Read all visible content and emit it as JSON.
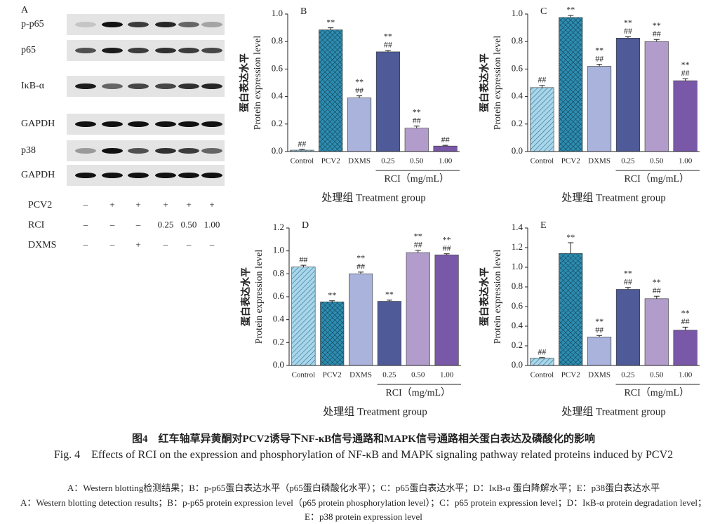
{
  "blot": {
    "panel": "A",
    "bands": [
      "p-p65",
      "p65",
      "IκB-α",
      "GAPDH",
      "p38",
      "GAPDH"
    ],
    "treatments": [
      {
        "name": "PCV2",
        "marks": [
          "–",
          "+",
          "+",
          "+",
          "+",
          "+"
        ]
      },
      {
        "name": "RCI",
        "marks": [
          "–",
          "–",
          "–",
          "0.25",
          "0.50",
          "1.00"
        ]
      },
      {
        "name": "DXMS",
        "marks": [
          "–",
          "–",
          "+",
          "–",
          "–",
          "–"
        ]
      }
    ]
  },
  "chart_data": [
    {
      "type": "bar",
      "panel": "B",
      "y_label_cn": "蛋白表达水平",
      "y_label_en": "Protein expression level",
      "x_label": "处理组 Treatment group",
      "group_label": "RCI（mg/mL）",
      "categories": [
        "Control",
        "PCV2",
        "DXMS",
        "0.25",
        "0.50",
        "1.00"
      ],
      "values": [
        0.01,
        0.885,
        0.39,
        0.725,
        0.17,
        0.04
      ],
      "errors": [
        0.005,
        0.015,
        0.015,
        0.01,
        0.015,
        0.005
      ],
      "annotations": [
        [
          "##"
        ],
        [
          "**"
        ],
        [
          "**",
          "##"
        ],
        [
          "**",
          "##"
        ],
        [
          "**",
          "##"
        ],
        [
          "##"
        ]
      ],
      "colors": [
        "#a9d6ea",
        "#2d8db1",
        "#a9b3dc",
        "#4e5b98",
        "#b19ccb",
        "#7a58a8"
      ],
      "patterns": [
        "diagonal",
        "crosshatch",
        "solid",
        "solid",
        "solid",
        "solid"
      ],
      "ylim": [
        0,
        1
      ],
      "yticks": [
        {
          "value": 0,
          "label": "0.0"
        },
        0.2,
        0.4,
        0.6,
        0.8,
        {
          "value": 1,
          "label": "1.0"
        }
      ]
    },
    {
      "type": "bar",
      "panel": "C",
      "y_label_cn": "蛋白表达水平",
      "y_label_en": "Protein expression level",
      "x_label": "处理组 Treatment group",
      "group_label": "RCI（mg/mL）",
      "categories": [
        "Control",
        "PCV2",
        "DXMS",
        "0.25",
        "0.50",
        "1.00"
      ],
      "values": [
        0.465,
        0.975,
        0.62,
        0.825,
        0.8,
        0.515
      ],
      "errors": [
        0.015,
        0.015,
        0.015,
        0.01,
        0.015,
        0.015
      ],
      "annotations": [
        [
          "##"
        ],
        [
          "**"
        ],
        [
          "**",
          "##"
        ],
        [
          "**",
          "##"
        ],
        [
          "**",
          "##"
        ],
        [
          "**",
          "##"
        ]
      ],
      "colors": [
        "#a9d6ea",
        "#2d8db1",
        "#a9b3dc",
        "#4e5b98",
        "#b19ccb",
        "#7a58a8"
      ],
      "patterns": [
        "diagonal",
        "crosshatch",
        "solid",
        "solid",
        "solid",
        "solid"
      ],
      "ylim": [
        0,
        1
      ],
      "yticks": [
        {
          "value": 0,
          "label": "0.0"
        },
        0.2,
        0.4,
        0.6,
        0.8,
        {
          "value": 1,
          "label": "1.0"
        }
      ]
    },
    {
      "type": "bar",
      "panel": "D",
      "y_label_cn": "蛋白表达水平",
      "y_label_en": "Protein expression level",
      "x_label": "处理组 Treatment group",
      "group_label": "RCI（mg/mL）",
      "categories": [
        "Control",
        "PCV2",
        "DXMS",
        "0.25",
        "0.50",
        "1.00"
      ],
      "values": [
        0.86,
        0.555,
        0.8,
        0.56,
        0.985,
        0.965
      ],
      "errors": [
        0.015,
        0.01,
        0.015,
        0.01,
        0.02,
        0.01
      ],
      "annotations": [
        [
          "##"
        ],
        [
          "**"
        ],
        [
          "**",
          "##"
        ],
        [
          "**"
        ],
        [
          "**",
          "##"
        ],
        [
          "**",
          "##"
        ]
      ],
      "colors": [
        "#a9d6ea",
        "#2d8db1",
        "#a9b3dc",
        "#4e5b98",
        "#b19ccb",
        "#7a58a8"
      ],
      "patterns": [
        "diagonal",
        "crosshatch",
        "solid",
        "solid",
        "solid",
        "solid"
      ],
      "ylim": [
        0,
        1.2
      ],
      "yticks": [
        {
          "value": 0,
          "label": "0.0"
        },
        0.2,
        0.4,
        0.6,
        0.8,
        {
          "value": 1,
          "label": "1.0"
        },
        1.2
      ]
    },
    {
      "type": "bar",
      "panel": "E",
      "y_label_cn": "蛋白表达水平",
      "y_label_en": "Protein expression level",
      "x_label": "处理组 Treatment group",
      "group_label": "RCI（mg/mL）",
      "categories": [
        "Control",
        "PCV2",
        "DXMS",
        "0.25",
        "0.50",
        "1.00"
      ],
      "values": [
        0.075,
        1.14,
        0.29,
        0.775,
        0.68,
        0.36
      ],
      "errors": [
        0.005,
        0.11,
        0.015,
        0.02,
        0.025,
        0.03
      ],
      "annotations": [
        [
          "##"
        ],
        [
          "**"
        ],
        [
          "**",
          "##"
        ],
        [
          "**",
          "##"
        ],
        [
          "**",
          "##"
        ],
        [
          "**",
          "##"
        ]
      ],
      "colors": [
        "#a9d6ea",
        "#2d8db1",
        "#a9b3dc",
        "#4e5b98",
        "#b19ccb",
        "#7a58a8"
      ],
      "patterns": [
        "diagonal",
        "crosshatch",
        "solid",
        "solid",
        "solid",
        "solid"
      ],
      "ylim": [
        0,
        1.4
      ],
      "yticks": [
        {
          "value": 0,
          "label": "0.0"
        },
        0.2,
        0.4,
        0.6,
        0.8,
        {
          "value": 1,
          "label": "1.0"
        },
        1.2,
        1.4
      ]
    }
  ],
  "caption": {
    "title_cn": "图4　红车轴草异黄酮对PCV2诱导下NF-κB信号通路和MAPK信号通路相关蛋白表达及磷酸化的影响",
    "title_en": "Fig. 4　Effects of RCI on the expression and phosphorylation of NF-κB and MAPK signaling pathway related proteins induced by PCV2",
    "note_cn": "A：Western blotting检测结果；B：p-p65蛋白表达水平（p65蛋白磷酸化水平）；C：p65蛋白表达水平；D：IκB-α 蛋白降解水平；E：p38蛋白表达水平",
    "note_en": "A：Western blotting detection results；B：p-p65 protein expression level（p65 protein phosphorylation level）；C：p65 protein expression level；D：IκB-α protein degradation level；E：p38 protein expression level"
  }
}
